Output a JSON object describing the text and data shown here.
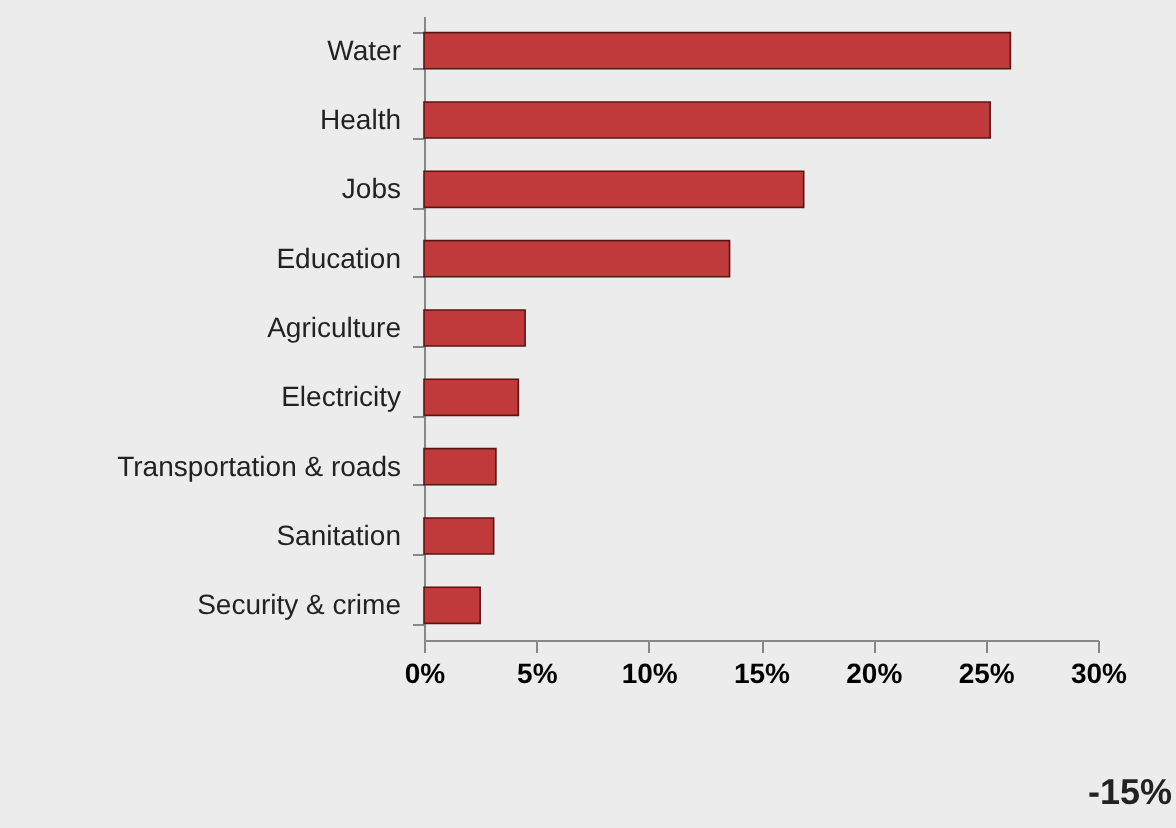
{
  "chart_data": {
    "type": "bar",
    "orientation": "horizontal",
    "categories": [
      "Water",
      "Health",
      "Jobs",
      "Education",
      "Agriculture",
      "Electricity",
      "Transportation & roads",
      "Sanitation",
      "Security & crime"
    ],
    "values": [
      26.1,
      25.2,
      16.9,
      13.6,
      4.5,
      4.2,
      3.2,
      3.1,
      2.5
    ],
    "color": "#c0393b",
    "xlim": [
      0,
      30
    ],
    "xticks": [
      {
        "value": 0,
        "label": "0%"
      },
      {
        "value": 5,
        "label": "5%"
      },
      {
        "value": 10,
        "label": "10%"
      },
      {
        "value": 15,
        "label": "15%"
      },
      {
        "value": 20,
        "label": "20%"
      },
      {
        "value": 25,
        "label": "25%"
      },
      {
        "value": 30,
        "label": "30%"
      }
    ],
    "grid": false,
    "annotations": [
      "-15%"
    ]
  }
}
